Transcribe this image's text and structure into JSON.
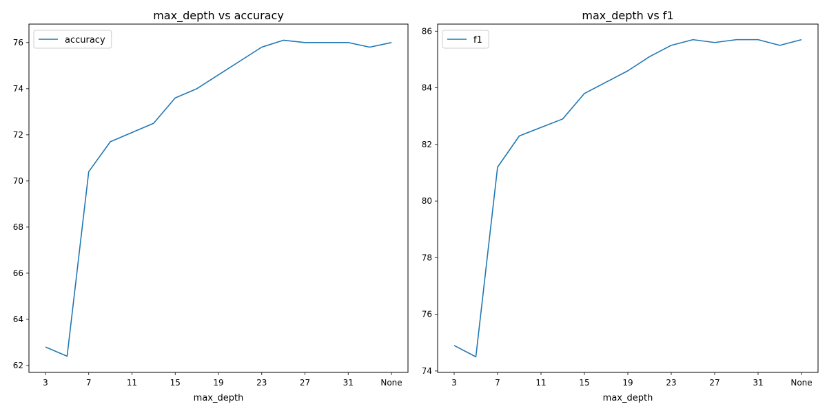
{
  "chart_data": [
    {
      "type": "line",
      "title": "max_depth vs accuracy",
      "xlabel": "max_depth",
      "ylabel": "",
      "categories": [
        "3",
        "5",
        "7",
        "9",
        "11",
        "13",
        "15",
        "17",
        "19",
        "21",
        "23",
        "25",
        "27",
        "29",
        "31",
        "33",
        "None"
      ],
      "xtick_labels": [
        "3",
        "7",
        "11",
        "15",
        "19",
        "23",
        "27",
        "31",
        "None"
      ],
      "series": [
        {
          "name": "accuracy",
          "color": "#1f77b4",
          "values": [
            62.8,
            62.4,
            70.4,
            71.7,
            72.1,
            72.5,
            73.6,
            74.0,
            74.6,
            75.2,
            75.8,
            76.1,
            76.0,
            76.0,
            76.0,
            75.8,
            76.0
          ]
        }
      ],
      "ylim": [
        61.7,
        76.8
      ],
      "yticks": [
        62,
        64,
        66,
        68,
        70,
        72,
        74,
        76
      ],
      "legend": "top-left",
      "grid": false
    },
    {
      "type": "line",
      "title": "max_depth vs f1",
      "xlabel": "max_depth",
      "ylabel": "",
      "categories": [
        "3",
        "5",
        "7",
        "9",
        "11",
        "13",
        "15",
        "17",
        "19",
        "21",
        "23",
        "25",
        "27",
        "29",
        "31",
        "33",
        "None"
      ],
      "xtick_labels": [
        "3",
        "7",
        "11",
        "15",
        "19",
        "23",
        "27",
        "31",
        "None"
      ],
      "series": [
        {
          "name": "f1",
          "color": "#1f77b4",
          "values": [
            74.9,
            74.5,
            81.2,
            82.3,
            82.6,
            82.9,
            83.8,
            84.2,
            84.6,
            85.1,
            85.5,
            85.7,
            85.6,
            85.7,
            85.7,
            85.5,
            85.7
          ]
        }
      ],
      "ylim": [
        73.95,
        86.25
      ],
      "yticks": [
        74,
        76,
        78,
        80,
        82,
        84,
        86
      ],
      "legend": "top-left",
      "grid": false
    }
  ]
}
